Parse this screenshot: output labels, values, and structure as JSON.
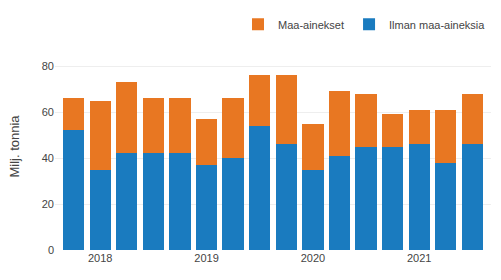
{
  "chart_data": {
    "type": "bar",
    "stacked": true,
    "categories": [
      null,
      "2018",
      null,
      null,
      null,
      "2019",
      null,
      null,
      null,
      "2020",
      null,
      null,
      null,
      "2021",
      null,
      null
    ],
    "series": [
      {
        "name": "Ilman maa-aineksia",
        "color": "#1A7BBF",
        "values": [
          52,
          35,
          42,
          42,
          42,
          37,
          40,
          54,
          46,
          35,
          41,
          45,
          45,
          46,
          38,
          46
        ]
      },
      {
        "name": "Maa-ainekset",
        "color": "#E87722",
        "values": [
          14,
          30,
          31,
          24,
          24,
          20,
          26,
          22,
          30,
          20,
          28,
          23,
          14,
          15,
          23,
          22
        ]
      }
    ],
    "ylabel": "Milj. tonnia",
    "ylim": [
      0,
      90
    ],
    "yticks": [
      0,
      20,
      40,
      60,
      80
    ],
    "grid": true,
    "legend": "upper right"
  }
}
